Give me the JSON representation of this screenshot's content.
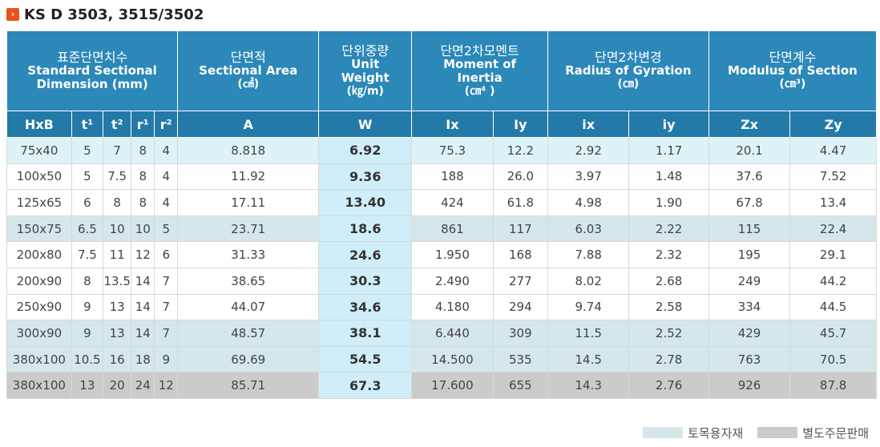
{
  "title": {
    "icon": "arrow-box-icon",
    "text": "KS D 3503, 3515/3502"
  },
  "header": {
    "dimension": {
      "ko": "표준단면치수",
      "en1": "Standard Sectional",
      "en2": "Dimension (mm)"
    },
    "area": {
      "ko": "단면적",
      "en": "Sectional Area",
      "unit": "(㎠)"
    },
    "weight": {
      "ko": "단위중량",
      "en1": "Unit",
      "en2": "Weight",
      "unit": "(㎏/m)"
    },
    "inertia": {
      "ko": "단면2차모멘트",
      "en1": "Moment of",
      "en2": "Inertia",
      "unit": "(㎝⁴ )"
    },
    "gyration": {
      "ko": "단면2차변경",
      "en": "Radius of Gyration",
      "unit": "(㎝)"
    },
    "modulus": {
      "ko": "단면계수",
      "en": "Modulus of Section",
      "unit": "(㎝³)"
    }
  },
  "columns": [
    "HxB",
    "t¹",
    "t²",
    "r¹",
    "r²",
    "A",
    "W",
    "Ix",
    "Iy",
    "ix",
    "iy",
    "Zx",
    "Zy"
  ],
  "rows": [
    [
      "75x40",
      "5",
      "7",
      "8",
      "4",
      "8.818",
      "6.92",
      "75.3",
      "12.2",
      "2.92",
      "1.17",
      "20.1",
      "4.47"
    ],
    [
      "100x50",
      "5",
      "7.5",
      "8",
      "4",
      "11.92",
      "9.36",
      "188",
      "26.0",
      "3.97",
      "1.48",
      "37.6",
      "7.52"
    ],
    [
      "125x65",
      "6",
      "8",
      "8",
      "4",
      "17.11",
      "13.40",
      "424",
      "61.8",
      "4.98",
      "1.90",
      "67.8",
      "13.4"
    ],
    [
      "150x75",
      "6.5",
      "10",
      "10",
      "5",
      "23.71",
      "18.6",
      "861",
      "117",
      "6.03",
      "2.22",
      "115",
      "22.4"
    ],
    [
      "200x80",
      "7.5",
      "11",
      "12",
      "6",
      "31.33",
      "24.6",
      "1.950",
      "168",
      "7.88",
      "2.32",
      "195",
      "29.1"
    ],
    [
      "200x90",
      "8",
      "13.5",
      "14",
      "7",
      "38.65",
      "30.3",
      "2.490",
      "277",
      "8.02",
      "2.68",
      "249",
      "44.2"
    ],
    [
      "250x90",
      "9",
      "13",
      "14",
      "7",
      "44.07",
      "34.6",
      "4.180",
      "294",
      "9.74",
      "2.58",
      "334",
      "44.5"
    ],
    [
      "300x90",
      "9",
      "13",
      "14",
      "7",
      "48.57",
      "38.1",
      "6.440",
      "309",
      "11.5",
      "2.52",
      "429",
      "45.7"
    ],
    [
      "380x100",
      "10.5",
      "16",
      "18",
      "9",
      "69.69",
      "54.5",
      "14.500",
      "535",
      "14.5",
      "2.78",
      "763",
      "70.5"
    ],
    [
      "380x100",
      "13",
      "20",
      "24",
      "12",
      "85.71",
      "67.3",
      "17.600",
      "655",
      "14.3",
      "2.76",
      "926",
      "87.8"
    ]
  ],
  "row_styles": [
    "light",
    "plain",
    "plain",
    "teal",
    "plain",
    "plain",
    "plain",
    "teal",
    "teal",
    "gray"
  ],
  "legend": [
    {
      "label": "토목용자재",
      "color": "#d6e7ea"
    },
    {
      "label": "별도주문판매",
      "color": "#cbcbcb"
    }
  ]
}
